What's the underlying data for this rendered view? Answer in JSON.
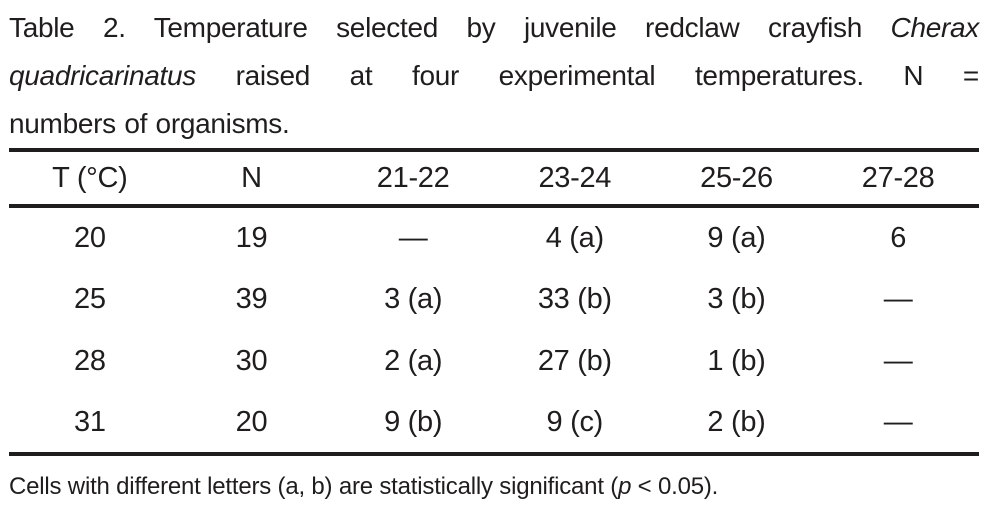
{
  "caption": {
    "line1": {
      "normal": "Table 2. Temperature selected by juvenile redclaw crayfish",
      "italic": "Cherax"
    },
    "line2": {
      "italic": "quadricarinatus",
      "normal": "raised at four experimental temperatures. N ="
    },
    "line3": {
      "normal": "numbers of organisms."
    }
  },
  "table": {
    "headers": [
      "T (°C)",
      "N",
      "21-22",
      "23-24",
      "25-26",
      "27-28"
    ],
    "rows": [
      [
        "20",
        "19",
        "—",
        "4 (a)",
        "9 (a)",
        "6"
      ],
      [
        "25",
        "39",
        "3 (a)",
        "33 (b)",
        "3 (b)",
        "—"
      ],
      [
        "28",
        "30",
        "2 (a)",
        "27 (b)",
        "1 (b)",
        "—"
      ],
      [
        "31",
        "20",
        "9 (b)",
        "9 (c)",
        "2 (b)",
        "—"
      ]
    ]
  },
  "footnote": {
    "prefix": "Cells with different letters (a, b) are statistically significant (",
    "italic": "p",
    "suffix": " < 0.05)."
  },
  "colors": {
    "text": "#1f1d1e",
    "rule": "#1f1d1e",
    "background": "#ffffff"
  }
}
